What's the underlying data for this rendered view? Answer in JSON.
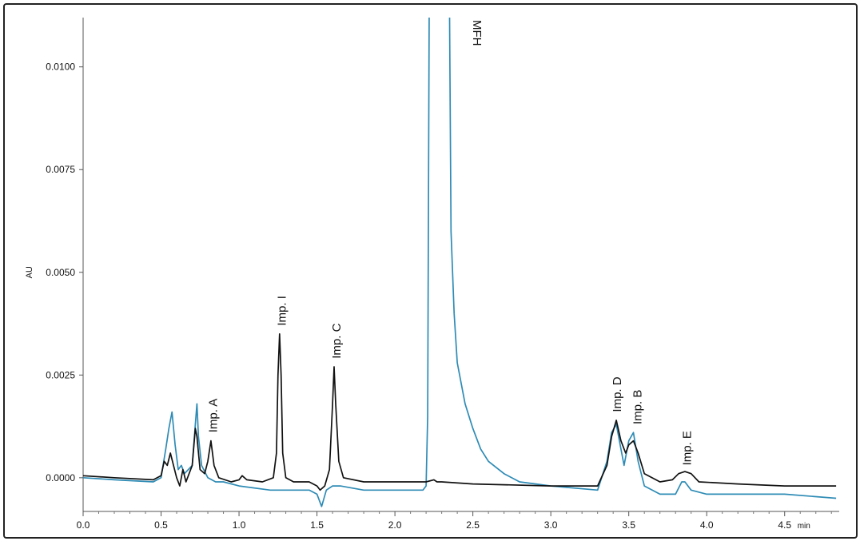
{
  "chart_data": {
    "type": "line",
    "title": "",
    "xlabel": "",
    "ylabel": "AU",
    "x_unit": "min",
    "xlim": [
      0.0,
      4.85
    ],
    "ylim": [
      -0.00082,
      0.0112
    ],
    "grid": false,
    "x_ticks": [
      {
        "value": 0.0,
        "label": "0.0"
      },
      {
        "value": 0.5,
        "label": "0.5"
      },
      {
        "value": 1.0,
        "label": "1.0"
      },
      {
        "value": 1.5,
        "label": "1.5"
      },
      {
        "value": 2.0,
        "label": "2.0"
      },
      {
        "value": 2.5,
        "label": "2.5"
      },
      {
        "value": 3.0,
        "label": "3.0"
      },
      {
        "value": 3.5,
        "label": "3.5"
      },
      {
        "value": 4.0,
        "label": "4.0"
      },
      {
        "value": 4.5,
        "label": "4.5"
      }
    ],
    "y_ticks": [
      {
        "value": 0.0,
        "label": "0.0000"
      },
      {
        "value": 0.0025,
        "label": "0.0025"
      },
      {
        "value": 0.005,
        "label": "0.0050"
      },
      {
        "value": 0.0075,
        "label": "0.0075"
      },
      {
        "value": 0.01,
        "label": "0.0100"
      }
    ],
    "series": [
      {
        "color": "#111111",
        "x": [
          0.0,
          0.2,
          0.45,
          0.5,
          0.52,
          0.54,
          0.56,
          0.58,
          0.6,
          0.62,
          0.64,
          0.66,
          0.7,
          0.72,
          0.73,
          0.75,
          0.78,
          0.8,
          0.82,
          0.84,
          0.87,
          0.95,
          1.0,
          1.02,
          1.05,
          1.15,
          1.22,
          1.24,
          1.25,
          1.26,
          1.27,
          1.28,
          1.3,
          1.35,
          1.45,
          1.5,
          1.52,
          1.55,
          1.58,
          1.6,
          1.61,
          1.62,
          1.64,
          1.67,
          1.8,
          2.0,
          2.2,
          2.25,
          2.27,
          2.3,
          2.5,
          3.0,
          3.3,
          3.36,
          3.39,
          3.42,
          3.45,
          3.48,
          3.5,
          3.53,
          3.56,
          3.6,
          3.7,
          3.78,
          3.82,
          3.86,
          3.9,
          3.95,
          4.2,
          4.5,
          4.83
        ],
        "y": [
          5e-05,
          0.0,
          -5e-05,
          5e-05,
          0.0004,
          0.0003,
          0.0006,
          0.0003,
          0.0,
          -0.0002,
          0.0002,
          -0.0001,
          0.0003,
          0.0012,
          0.001,
          0.0002,
          0.0001,
          0.0004,
          0.0009,
          0.0003,
          0.0,
          -0.0001,
          -5e-05,
          5e-05,
          -5e-05,
          -0.0001,
          0.0,
          0.0006,
          0.0025,
          0.0035,
          0.0025,
          0.0006,
          0.0,
          -0.0001,
          -0.0001,
          -0.0002,
          -0.0003,
          -0.0002,
          0.0002,
          0.0018,
          0.0027,
          0.0018,
          0.0004,
          0.0,
          -0.0001,
          -0.0001,
          -0.0001,
          -5e-05,
          -0.0001,
          -0.0001,
          -0.00015,
          -0.0002,
          -0.0002,
          0.0003,
          0.001,
          0.0014,
          0.0009,
          0.0006,
          0.0008,
          0.0009,
          0.0006,
          0.0001,
          -0.0001,
          -5e-05,
          0.0001,
          0.00015,
          0.0001,
          -0.0001,
          -0.00015,
          -0.0002,
          -0.0002
        ]
      },
      {
        "color": "#2e8bb5",
        "x": [
          0.0,
          0.2,
          0.45,
          0.5,
          0.53,
          0.55,
          0.57,
          0.59,
          0.61,
          0.63,
          0.65,
          0.7,
          0.72,
          0.73,
          0.74,
          0.76,
          0.8,
          0.85,
          0.9,
          1.0,
          1.2,
          1.3,
          1.45,
          1.5,
          1.53,
          1.56,
          1.6,
          1.65,
          1.8,
          2.0,
          2.18,
          2.2,
          2.21,
          2.22,
          2.35,
          2.36,
          2.38,
          2.4,
          2.45,
          2.5,
          2.55,
          2.6,
          2.7,
          2.8,
          3.0,
          3.3,
          3.36,
          3.39,
          3.42,
          3.45,
          3.47,
          3.5,
          3.53,
          3.56,
          3.6,
          3.7,
          3.8,
          3.84,
          3.86,
          3.9,
          4.0,
          4.2,
          4.5,
          4.83
        ],
        "y": [
          0.0,
          -5e-05,
          -0.0001,
          0.0,
          0.0007,
          0.0012,
          0.0016,
          0.0008,
          0.0002,
          0.0003,
          0.0001,
          0.0003,
          0.0013,
          0.0018,
          0.001,
          0.0003,
          0.0,
          -0.0001,
          -0.0001,
          -0.0002,
          -0.0003,
          -0.0003,
          -0.0003,
          -0.0004,
          -0.0007,
          -0.0003,
          -0.0002,
          -0.0002,
          -0.0003,
          -0.0003,
          -0.0003,
          -0.0002,
          0.0015,
          0.0115,
          0.0115,
          0.006,
          0.004,
          0.0028,
          0.0018,
          0.0012,
          0.0007,
          0.0004,
          0.0001,
          -0.0001,
          -0.0002,
          -0.0003,
          0.0004,
          0.0011,
          0.0013,
          0.0007,
          0.0003,
          0.0009,
          0.0011,
          0.0004,
          -0.0002,
          -0.0004,
          -0.0004,
          -0.0001,
          -0.0001,
          -0.0003,
          -0.0004,
          -0.0004,
          -0.0004,
          -0.0005
        ]
      }
    ],
    "annotations": [
      {
        "text": "Imp. A",
        "x": 0.86,
        "y": 0.0011
      },
      {
        "text": "Imp. I",
        "x": 1.3,
        "y": 0.0037
      },
      {
        "text": "Imp. C",
        "x": 1.65,
        "y": 0.0029
      },
      {
        "text": "MFH",
        "x": 2.45,
        "y": 0.011
      },
      {
        "text": "Imp. D",
        "x": 3.45,
        "y": 0.0016
      },
      {
        "text": "Imp. B",
        "x": 3.58,
        "y": 0.0013
      },
      {
        "text": "Imp. E",
        "x": 3.9,
        "y": 0.0003
      }
    ]
  }
}
